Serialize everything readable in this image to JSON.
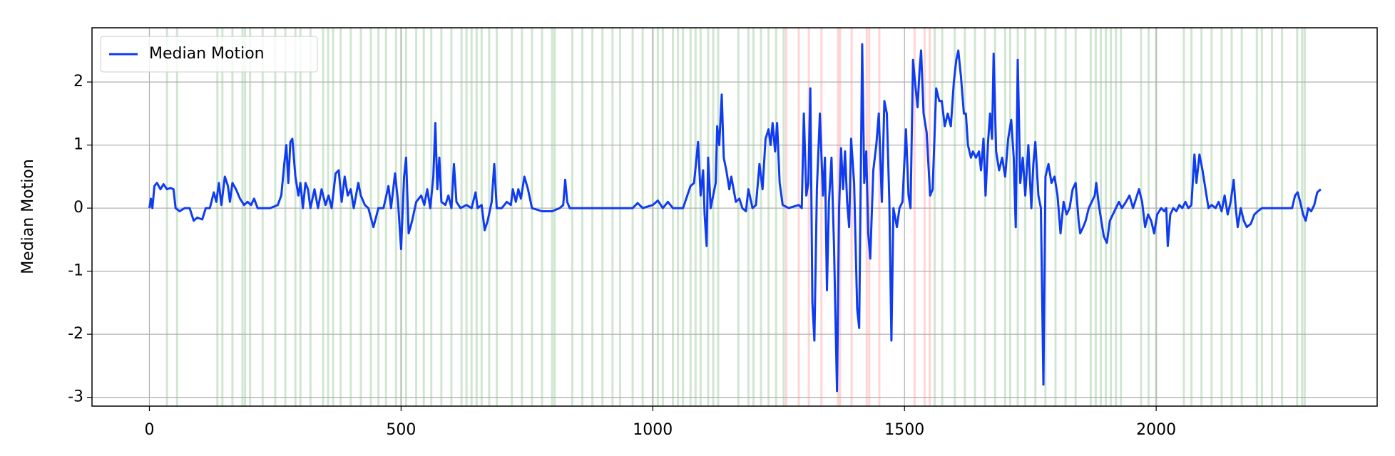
{
  "chart_data": {
    "type": "line",
    "ylabel": "Median Motion",
    "xlim": [
      -114,
      2439
    ],
    "ylim": [
      -3.14,
      2.86
    ],
    "xticks": [
      0,
      500,
      1000,
      1500,
      2000
    ],
    "yticks": [
      -3,
      -2,
      -1,
      0,
      1,
      2
    ],
    "grid": true,
    "legend": "upper left",
    "series": [
      {
        "name": "Median Motion",
        "color": "#0f3cf0",
        "x": [
          0,
          3,
          6,
          10,
          15,
          22,
          28,
          35,
          42,
          48,
          52,
          60,
          70,
          80,
          88,
          95,
          105,
          112,
          120,
          128,
          133,
          138,
          143,
          150,
          156,
          160,
          165,
          172,
          180,
          188,
          195,
          202,
          208,
          215,
          240,
          255,
          262,
          268,
          272,
          276,
          280,
          284,
          290,
          296,
          300,
          305,
          310,
          315,
          320,
          328,
          335,
          342,
          350,
          356,
          362,
          370,
          376,
          382,
          388,
          394,
          400,
          406,
          415,
          420,
          428,
          435,
          445,
          455,
          465,
          475,
          480,
          488,
          494,
          500,
          506,
          510,
          515,
          522,
          530,
          540,
          546,
          552,
          558,
          564,
          568,
          572,
          576,
          580,
          588,
          594,
          600,
          605,
          610,
          618,
          630,
          640,
          648,
          652,
          660,
          666,
          672,
          680,
          685,
          690,
          700,
          710,
          718,
          722,
          728,
          733,
          738,
          745,
          752,
          760,
          780,
          800,
          815,
          822,
          826,
          830,
          835,
          900,
          960,
          970,
          980,
          1000,
          1010,
          1020,
          1030,
          1040,
          1060,
          1075,
          1082,
          1090,
          1095,
          1100,
          1103,
          1107,
          1110,
          1115,
          1120,
          1125,
          1128,
          1132,
          1137,
          1141,
          1146,
          1152,
          1156,
          1165,
          1172,
          1178,
          1185,
          1190,
          1198,
          1205,
          1212,
          1218,
          1224,
          1230,
          1234,
          1238,
          1243,
          1247,
          1252,
          1258,
          1270,
          1290,
          1296,
          1300,
          1305,
          1309,
          1313,
          1317,
          1321,
          1326,
          1332,
          1338,
          1342,
          1346,
          1350,
          1355,
          1360,
          1366,
          1370,
          1374,
          1378,
          1382,
          1386,
          1390,
          1394,
          1400,
          1406,
          1410,
          1416,
          1420,
          1424,
          1428,
          1432,
          1438,
          1444,
          1449,
          1455,
          1460,
          1465,
          1470,
          1474,
          1478,
          1485,
          1490,
          1496,
          1503,
          1508,
          1512,
          1517,
          1521,
          1526,
          1530,
          1533,
          1538,
          1544,
          1551,
          1556,
          1563,
          1569,
          1574,
          1580,
          1586,
          1592,
          1598,
          1603,
          1607,
          1612,
          1618,
          1622,
          1626,
          1632,
          1636,
          1642,
          1648,
          1652,
          1657,
          1661,
          1666,
          1670,
          1674,
          1677,
          1682,
          1688,
          1694,
          1700,
          1706,
          1712,
          1717,
          1721,
          1725,
          1730,
          1735,
          1740,
          1746,
          1752,
          1756,
          1760,
          1766,
          1771,
          1776,
          1780,
          1786,
          1792,
          1798,
          1804,
          1810,
          1816,
          1822,
          1828,
          1834,
          1840,
          1846,
          1849,
          1855,
          1860,
          1866,
          1872,
          1878,
          1881,
          1886,
          1891,
          1896,
          1902,
          1908,
          1914,
          1920,
          1926,
          1932,
          1940,
          1947,
          1954,
          1960,
          1966,
          1972,
          1978,
          1984,
          1990,
          1996,
          2002,
          2010,
          2016,
          2020,
          2023,
          2028,
          2034,
          2040,
          2046,
          2052,
          2058,
          2064,
          2070,
          2076,
          2080,
          2086,
          2092,
          2098,
          2104,
          2110,
          2118,
          2124,
          2130,
          2136,
          2142,
          2148,
          2154,
          2158,
          2162,
          2168,
          2174,
          2180,
          2188,
          2195,
          2202,
          2210,
          2240,
          2270,
          2276,
          2281,
          2286,
          2292,
          2297,
          2302,
          2308,
          2314,
          2320,
          2327
        ],
        "values": [
          0,
          0.15,
          0,
          0.35,
          0.4,
          0.3,
          0.38,
          0.3,
          0.32,
          0.3,
          0,
          -0.05,
          0,
          0,
          -0.2,
          -0.15,
          -0.18,
          0,
          0,
          0.25,
          0.1,
          0.4,
          0.05,
          0.5,
          0.35,
          0.1,
          0.4,
          0.3,
          0.15,
          0.05,
          0.1,
          0.05,
          0.15,
          0,
          0,
          0.05,
          0.2,
          0.7,
          1.0,
          0.4,
          1.05,
          1.1,
          0.5,
          0.2,
          0.4,
          0,
          0.4,
          0.3,
          0,
          0.3,
          0,
          0.3,
          0.05,
          0.2,
          0,
          0.55,
          0.6,
          0.1,
          0.5,
          0.2,
          0.3,
          0,
          0.4,
          0.2,
          0.05,
          0,
          -0.3,
          0,
          0,
          0.35,
          0,
          0.55,
          0.1,
          -0.65,
          0.5,
          0.8,
          -0.4,
          -0.2,
          0.1,
          0.2,
          0.05,
          0.3,
          0,
          0.5,
          1.35,
          0.3,
          0.8,
          0.1,
          0.05,
          0.2,
          0,
          0.7,
          0.1,
          0,
          0.05,
          0,
          0.25,
          0,
          0.05,
          -0.35,
          -0.2,
          0.1,
          0.7,
          0,
          0,
          0.1,
          0.05,
          0.3,
          0.1,
          0.3,
          0.15,
          0.5,
          0.3,
          0,
          -0.05,
          -0.05,
          0,
          0.05,
          0.45,
          0.1,
          0,
          0,
          0,
          0.08,
          0,
          0.05,
          0.12,
          0,
          0.1,
          0,
          0,
          0.35,
          0.4,
          1.05,
          0.2,
          0.6,
          -0.1,
          -0.6,
          0.8,
          0,
          0.2,
          0.4,
          1.3,
          1.0,
          1.8,
          0.8,
          0.6,
          0.3,
          0.5,
          0.1,
          0.15,
          0,
          -0.05,
          0.3,
          0,
          0.05,
          0.7,
          0.3,
          1.1,
          1.25,
          1.0,
          1.35,
          0.9,
          1.35,
          0.4,
          0.05,
          0,
          0.05,
          0,
          1.5,
          0.2,
          0.4,
          1.9,
          -1.5,
          -2.1,
          0.3,
          1.5,
          0.2,
          0.8,
          -1.3,
          0.1,
          0.8,
          -0.6,
          -2.9,
          0,
          0.95,
          0.3,
          0.9,
          0.1,
          -0.3,
          1.1,
          0.4,
          -1.6,
          -1.9,
          2.6,
          0.4,
          0.9,
          -0.4,
          -0.8,
          0.6,
          1.0,
          1.5,
          0.1,
          1.7,
          1.5,
          0.1,
          -2.1,
          0,
          -0.3,
          0,
          0.1,
          1.25,
          0.2,
          0,
          2.35,
          2.0,
          1.6,
          2.2,
          2.5,
          1.5,
          1.2,
          0.2,
          0.3,
          1.9,
          1.7,
          1.7,
          1.3,
          1.5,
          1.3,
          2.0,
          2.35,
          2.5,
          2.1,
          1.5,
          1.5,
          1.0,
          0.8,
          0.9,
          0.8,
          0.9,
          0.6,
          1.1,
          0.2,
          1.05,
          1.5,
          1.1,
          2.45,
          0.9,
          0.6,
          0.8,
          0.5,
          1.1,
          1.4,
          0.8,
          -0.3,
          2.35,
          0.4,
          0.8,
          0.2,
          1.0,
          0,
          0.7,
          1.05,
          0.2,
          0,
          -2.8,
          0.5,
          0.7,
          0.4,
          0.5,
          0.2,
          -0.4,
          0.1,
          -0.1,
          0,
          0.3,
          0.4,
          -0.2,
          -0.4,
          -0.3,
          -0.2,
          0,
          0.1,
          0.2,
          0.4,
          0.05,
          -0.2,
          -0.45,
          -0.55,
          -0.2,
          -0.1,
          0,
          0.1,
          0,
          0.1,
          0.2,
          0,
          0.15,
          0.3,
          0.1,
          -0.3,
          -0.1,
          -0.2,
          -0.4,
          -0.1,
          0,
          -0.05,
          0,
          -0.6,
          -0.1,
          0,
          -0.05,
          0.05,
          0,
          0.1,
          0,
          0.05,
          0.85,
          0.4,
          0.85,
          0.6,
          0.3,
          0,
          0.05,
          0,
          0.1,
          -0.05,
          0.2,
          -0.1,
          0.1,
          0.45,
          0,
          -0.3,
          0,
          -0.2,
          -0.3,
          -0.25,
          -0.1,
          -0.05,
          0,
          0,
          0,
          0.2,
          0.25,
          0.1,
          -0.1,
          -0.2,
          0,
          -0.05,
          0.05,
          0.25,
          0.3
        ]
      }
    ],
    "bands": [
      {
        "color": "#2e8b2e",
        "x": [
          35,
          55,
          135,
          145,
          165,
          185,
          190,
          200,
          225,
          250,
          270,
          290,
          300,
          320,
          345,
          355,
          365,
          380,
          400,
          420,
          440,
          455,
          470,
          490,
          500,
          510,
          530,
          545,
          560,
          580,
          600,
          620,
          630,
          640,
          650,
          660,
          675,
          690,
          720,
          740,
          760,
          780,
          800,
          805,
          840,
          860,
          880,
          900,
          920,
          935,
          960,
          980,
          1000,
          1010,
          1020,
          1040,
          1050,
          1060,
          1075,
          1085,
          1095,
          1110,
          1120,
          1130,
          1170,
          1190,
          1200,
          1215,
          1230,
          1245,
          1260,
          1560,
          1575,
          1600,
          1620,
          1640,
          1660,
          1680,
          1700,
          1710,
          1725,
          1740,
          1760,
          1780,
          1800,
          1820,
          1840,
          1870,
          1880,
          1890,
          1900,
          1910,
          1920,
          1930,
          1970,
          1985,
          2000,
          2055,
          2070,
          2090,
          2110,
          2130,
          2150,
          2170,
          2200,
          2210,
          2230,
          2250,
          2280,
          2290,
          2295
        ]
      },
      {
        "color": "#ff4040",
        "x": [
          1265,
          1290,
          1310,
          1335,
          1368,
          1372,
          1395,
          1425,
          1430,
          1450,
          1520,
          1540,
          1550
        ]
      }
    ]
  }
}
